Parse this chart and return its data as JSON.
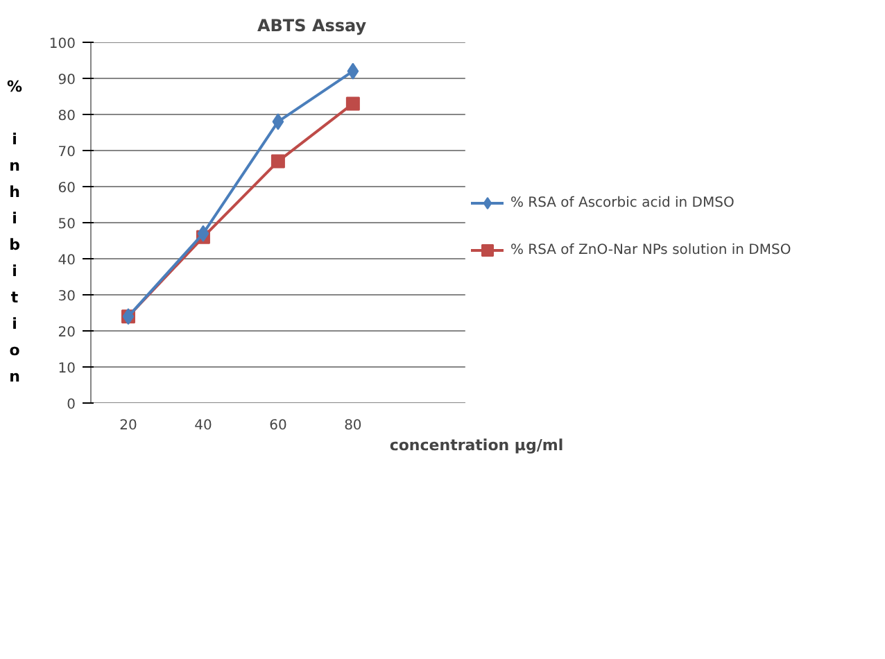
{
  "chart_data": {
    "type": "line",
    "title": "ABTS Assay",
    "xlabel": "concentration µg/ml",
    "ylabel": "% inhibition",
    "categories": [
      "20",
      "40",
      "60",
      "80",
      null
    ],
    "series": [
      {
        "name": "% RSA of Ascorbic acid in DMSO",
        "color": "#4a7ebb",
        "marker": "diamond",
        "values": [
          24,
          47,
          78,
          92,
          null
        ]
      },
      {
        "name": "% RSA of ZnO-Nar NPs solution in DMSO",
        "color": "#be4b48",
        "marker": "square",
        "values": [
          24,
          46,
          67,
          83,
          null
        ]
      }
    ],
    "ylim": [
      0,
      100
    ],
    "yticks": [
      0,
      10,
      20,
      30,
      40,
      50,
      60,
      70,
      80,
      90,
      100
    ],
    "grid": "y",
    "legend": "right"
  }
}
